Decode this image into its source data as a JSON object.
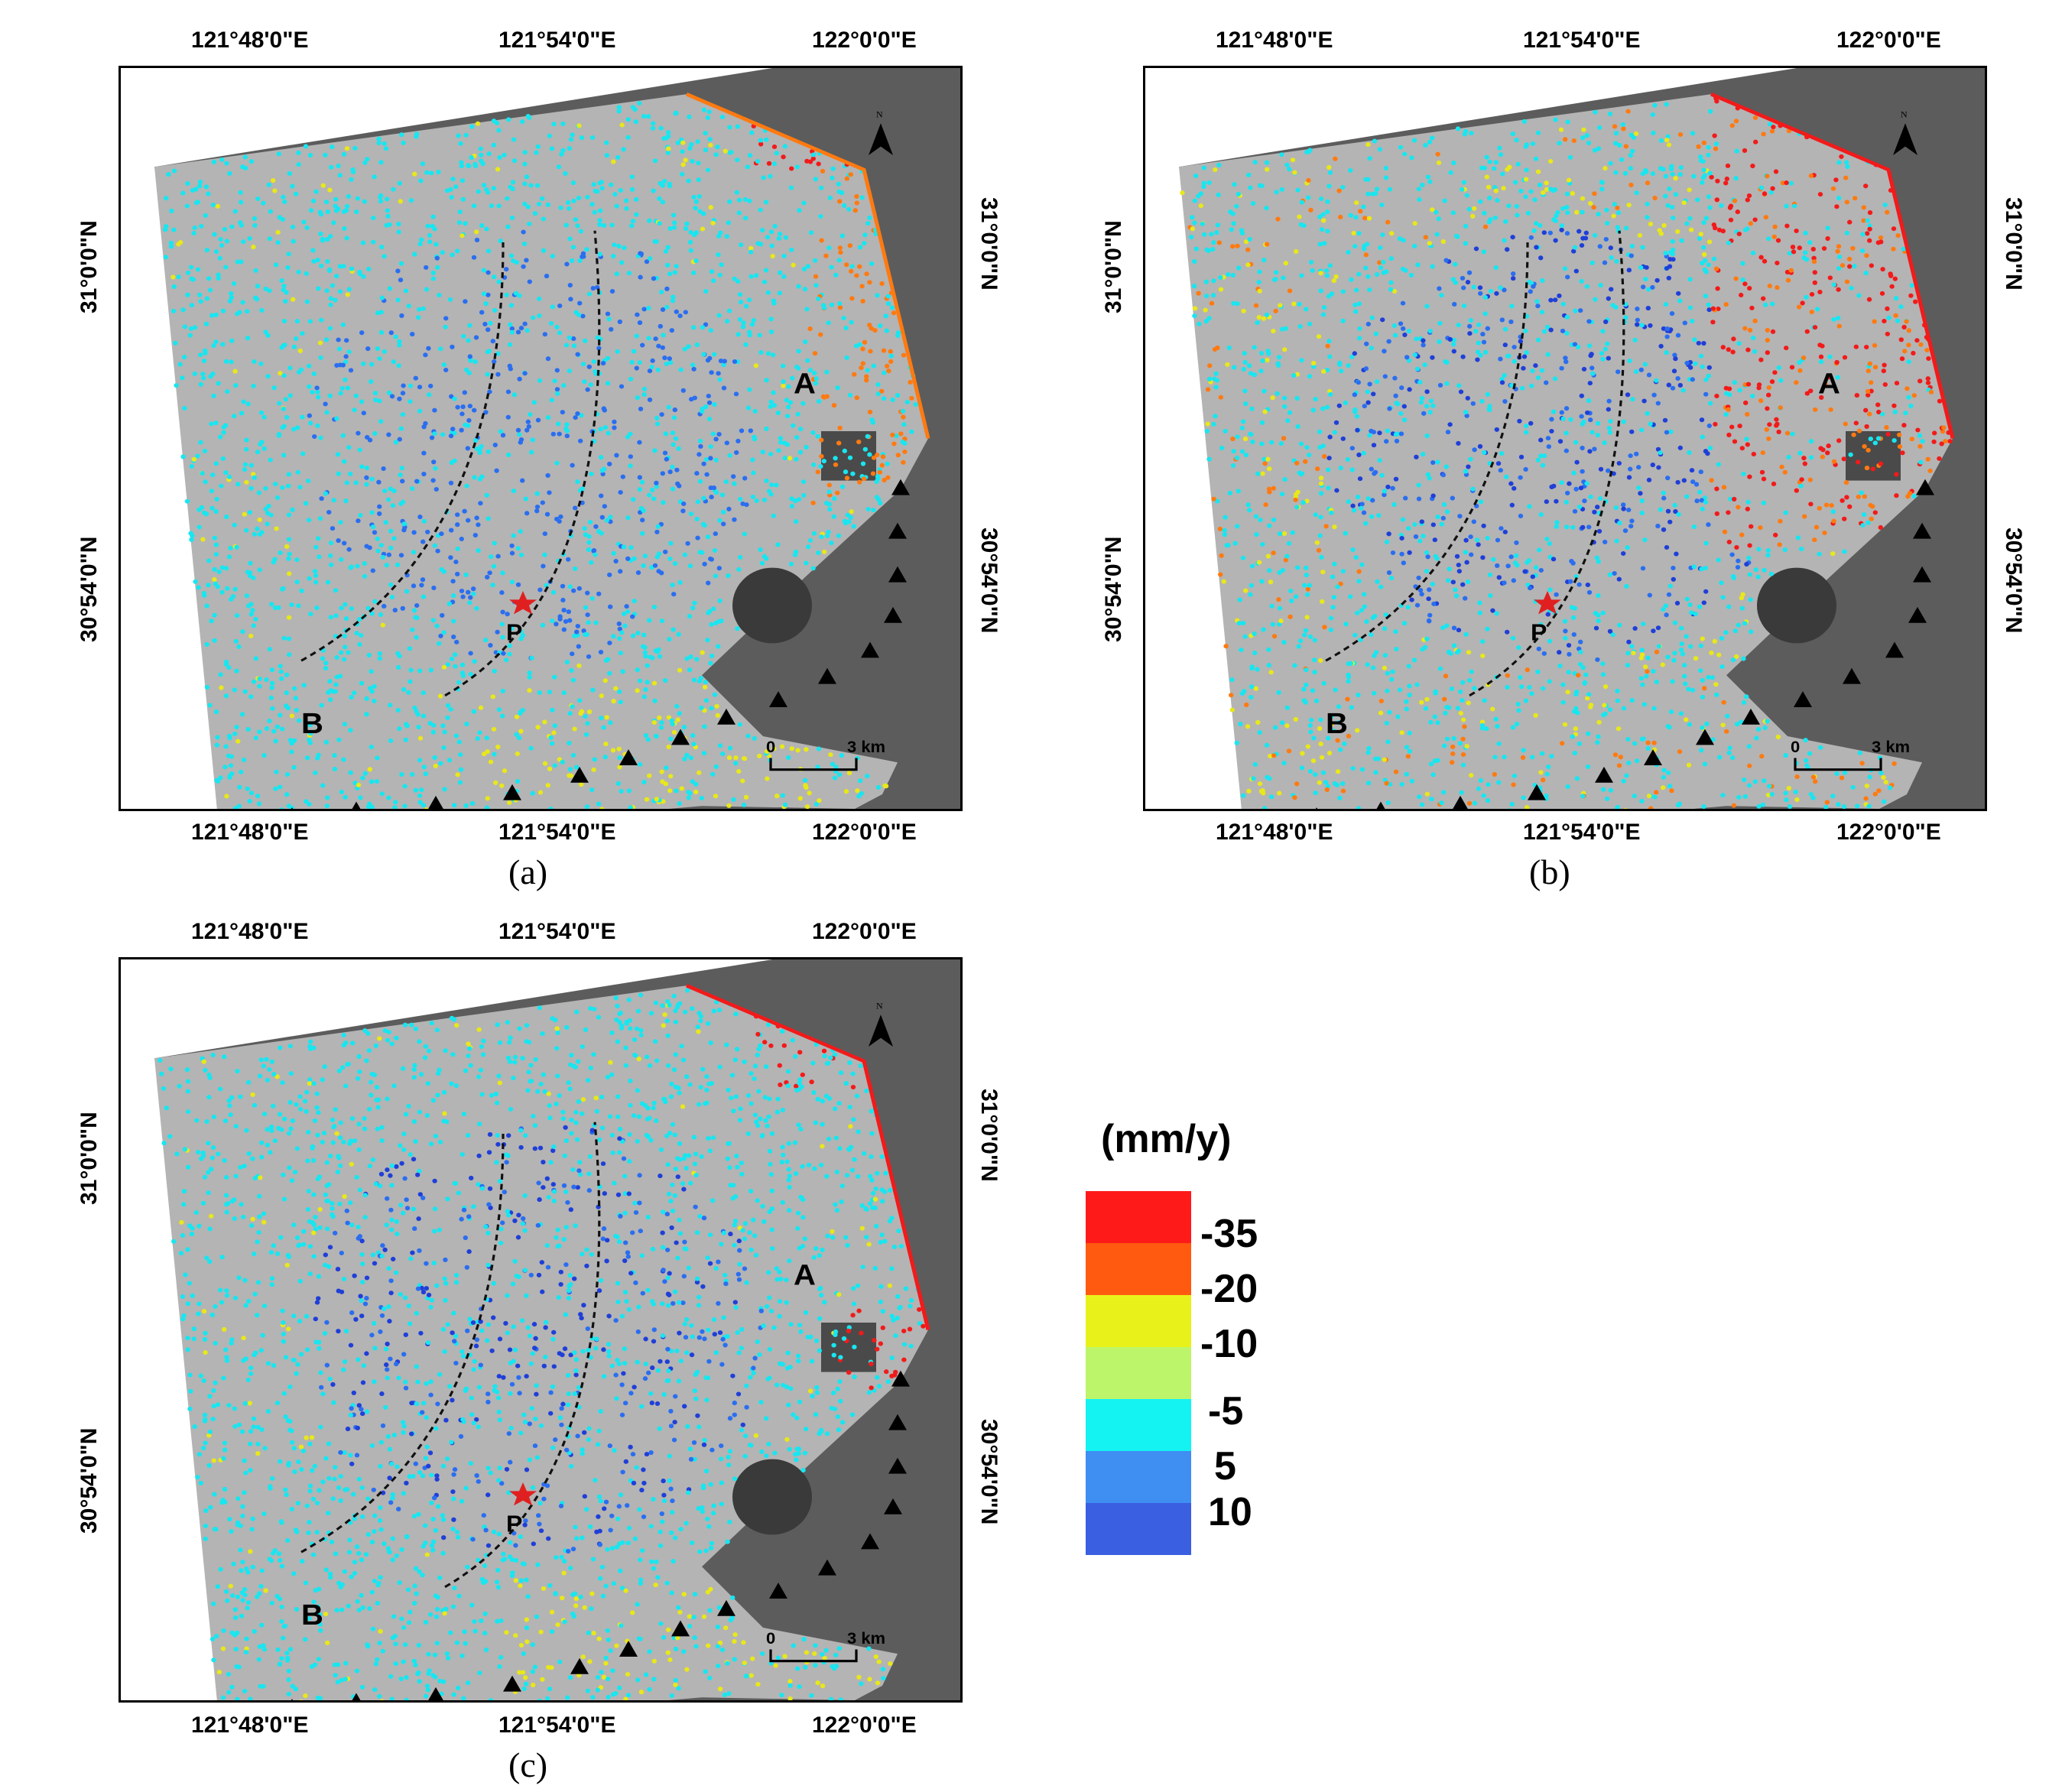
{
  "panels": [
    {
      "caption": "(a)",
      "lon_top": [
        "121°48'0\"E",
        "121°54'0\"E",
        "122°0'0\"E"
      ],
      "lon_bottom": [
        "121°48'0\"E",
        "121°54'0\"E",
        "122°0'0\"E"
      ],
      "lat_left": [
        "31°0'0\"N",
        "30°54'0\"N"
      ],
      "lat_right": [
        "31°0'0\"N",
        "30°54'0\"N"
      ],
      "north_label": "N",
      "scale_zero": "0",
      "scale_end": "3 km",
      "point_A": "A",
      "point_B": "B",
      "point_P": "P",
      "palette": "a"
    },
    {
      "caption": "(b)",
      "lon_top": [
        "121°48'0\"E",
        "121°54'0\"E",
        "122°0'0\"E"
      ],
      "lon_bottom": [
        "121°48'0\"E",
        "121°54'0\"E",
        "122°0'0\"E"
      ],
      "lat_left": [
        "31°0'0\"N",
        "30°54'0\"N"
      ],
      "lat_right": [
        "31°0'0\"N",
        "30°54'0\"N"
      ],
      "north_label": "N",
      "scale_zero": "0",
      "scale_end": "3 km",
      "point_A": "A",
      "point_B": "B",
      "point_P": "P",
      "palette": "b"
    },
    {
      "caption": "(c)",
      "lon_top": [
        "121°48'0\"E",
        "121°54'0\"E",
        "122°0'0\"E"
      ],
      "lon_bottom": [
        "121°48'0\"E",
        "121°54'0\"E",
        "122°0'0\"E"
      ],
      "lat_left": [
        "31°0'0\"N",
        "30°54'0\"N"
      ],
      "lat_right": [
        "31°0'0\"N",
        "30°54'0\"N"
      ],
      "north_label": "N",
      "scale_zero": "0",
      "scale_end": "3 km",
      "point_A": "A",
      "point_B": "B",
      "point_P": "P",
      "palette": "c"
    }
  ],
  "legend": {
    "unit": "(mm/y)",
    "classes": [
      {
        "color": "#ff1a1a",
        "label": "-35"
      },
      {
        "color": "#ff5a10",
        "label": "-20"
      },
      {
        "color": "#e8f21a",
        "label": "-10"
      },
      {
        "color": "#bdf56a",
        "label": ""
      },
      {
        "color": "#14f2f2",
        "label": "-5"
      },
      {
        "color": "#3f8ef2",
        "label": "5"
      },
      {
        "color": "#3a5fe0",
        "label": "10"
      }
    ]
  },
  "colors": {
    "sea": "#5c5c5c",
    "land": "#b4b4b4",
    "cyan": "#18e6f0",
    "blue": "#2a6ef0",
    "dark_blue": "#1f3fd8",
    "yellow": "#e8e81a",
    "orange": "#ff7a10",
    "red": "#f21a1a",
    "marker": "#000000",
    "star": "#e02020"
  }
}
